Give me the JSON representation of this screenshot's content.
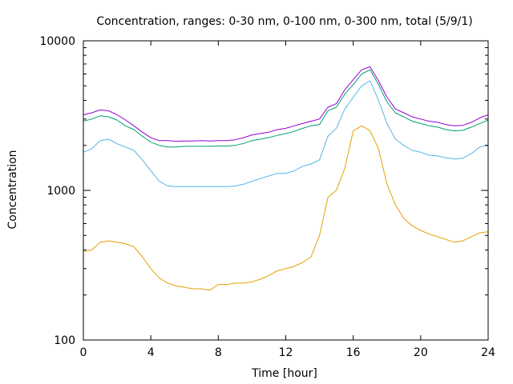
{
  "chart_data": {
    "type": "line",
    "title": "Concentration, ranges: 0-30 nm, 0-100 nm, 0-300 nm, total (5/9/1)",
    "xlabel": "Time [hour]",
    "ylabel": "Concentration",
    "xlim": [
      0,
      24
    ],
    "ylim": [
      100,
      10000
    ],
    "yscale": "log",
    "grid": false,
    "xticks": [
      "0",
      "4",
      "8",
      "12",
      "16",
      "20",
      "24"
    ],
    "yticks": [
      "100",
      "1000",
      "10000"
    ],
    "x": [
      0,
      0.5,
      1,
      1.5,
      2,
      2.5,
      3,
      3.5,
      4,
      4.5,
      5,
      5.5,
      6,
      6.5,
      7,
      7.5,
      8,
      8.5,
      9,
      9.5,
      10,
      10.5,
      11,
      11.5,
      12,
      12.5,
      13,
      13.5,
      14,
      14.5,
      15,
      15.5,
      16,
      16.5,
      17,
      17.5,
      18,
      18.5,
      19,
      19.5,
      20,
      20.5,
      21,
      21.5,
      22,
      22.5,
      23,
      23.5,
      24
    ],
    "series": [
      {
        "color": "#e69f00",
        "values": [
          390,
          400,
          450,
          460,
          450,
          440,
          420,
          360,
          300,
          260,
          240,
          230,
          225,
          220,
          220,
          215,
          235,
          235,
          240,
          240,
          245,
          255,
          270,
          290,
          300,
          310,
          330,
          360,
          500,
          900,
          1000,
          1400,
          2500,
          2700,
          2500,
          1900,
          1100,
          800,
          650,
          580,
          540,
          510,
          490,
          470,
          450,
          460,
          490,
          520,
          530
        ]
      },
      {
        "color": "#56b4e9",
        "values": [
          1800,
          1900,
          2150,
          2200,
          2050,
          1950,
          1850,
          1600,
          1350,
          1150,
          1070,
          1060,
          1060,
          1060,
          1060,
          1060,
          1060,
          1060,
          1070,
          1100,
          1150,
          1200,
          1250,
          1300,
          1300,
          1350,
          1450,
          1500,
          1600,
          2300,
          2600,
          3500,
          4200,
          5000,
          5400,
          4000,
          2800,
          2200,
          2000,
          1850,
          1800,
          1720,
          1700,
          1650,
          1620,
          1640,
          1760,
          1950,
          2000
        ]
      },
      {
        "color": "#009e73",
        "values": [
          2900,
          3000,
          3150,
          3100,
          2950,
          2700,
          2550,
          2300,
          2100,
          2000,
          1950,
          1950,
          1970,
          1970,
          1970,
          1970,
          1980,
          1980,
          2000,
          2060,
          2150,
          2200,
          2260,
          2330,
          2400,
          2480,
          2600,
          2700,
          2750,
          3400,
          3600,
          4400,
          5100,
          6000,
          6400,
          5100,
          3900,
          3300,
          3100,
          2900,
          2800,
          2700,
          2650,
          2550,
          2500,
          2520,
          2650,
          2800,
          2950
        ]
      },
      {
        "color": "#9400d3",
        "values": [
          3200,
          3300,
          3450,
          3400,
          3200,
          2950,
          2700,
          2450,
          2250,
          2150,
          2150,
          2130,
          2140,
          2140,
          2150,
          2140,
          2150,
          2150,
          2180,
          2250,
          2350,
          2400,
          2450,
          2550,
          2600,
          2700,
          2800,
          2900,
          3000,
          3600,
          3800,
          4700,
          5500,
          6400,
          6700,
          5400,
          4200,
          3500,
          3300,
          3100,
          3000,
          2900,
          2850,
          2750,
          2700,
          2720,
          2850,
          3050,
          3200
        ]
      }
    ]
  }
}
